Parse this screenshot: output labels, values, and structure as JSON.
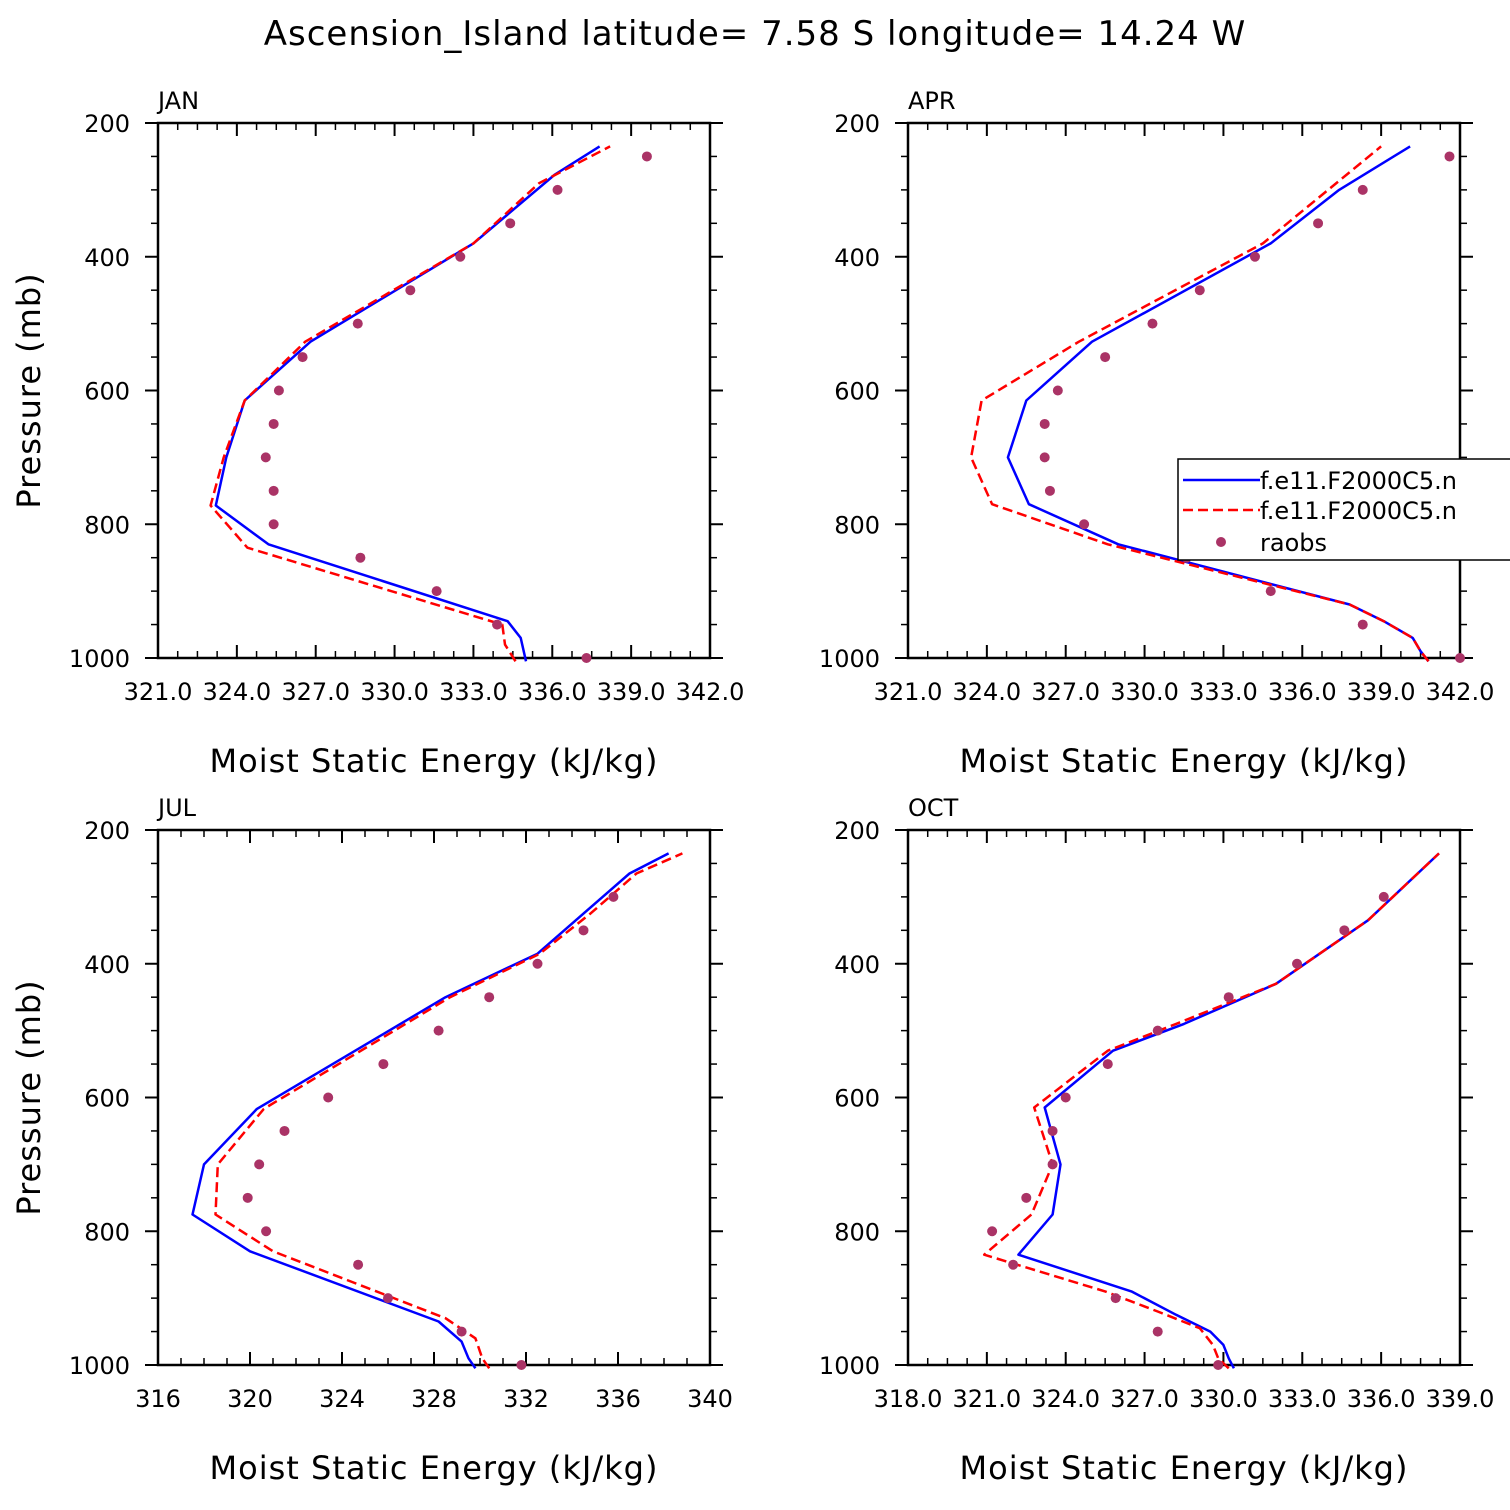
{
  "title": "Ascension_Island  latitude= 7.58 S longitude= 14.24 W",
  "colors": {
    "model_1": "#0000ff",
    "model_2": "#ff0000",
    "raobs": "#aa3366"
  },
  "legend": {
    "entries": [
      "f.e11.F2000C5.n",
      "f.e11.F2000C5.n",
      "raobs"
    ],
    "placement": "right of APR panel"
  },
  "chart_data": [
    {
      "type": "line",
      "panel": "JAN",
      "xlabel": "Moist Static Energy (kJ/kg)",
      "ylabel": "Pressure (mb)",
      "xlim": [
        321.0,
        342.0
      ],
      "ylim": [
        1000,
        200
      ],
      "y_reversed": true,
      "xticks": [
        321.0,
        324.0,
        327.0,
        330.0,
        333.0,
        336.0,
        339.0,
        342.0
      ],
      "xtick_labels": [
        "321.0",
        "324.0",
        "327.0",
        "330.0",
        "333.0",
        "336.0",
        "339.0",
        "342.0"
      ],
      "yticks": [
        200,
        400,
        600,
        800,
        1000
      ],
      "ytick_labels": [
        "200",
        "400",
        "600",
        "800",
        "1000"
      ],
      "series": [
        {
          "name": "f.e11.F2000C5.n",
          "style": "solid",
          "x": [
            335.0,
            334.8,
            334.3,
            325.2,
            323.2,
            323.6,
            324.3,
            326.8,
            333.0,
            336.1,
            337.8
          ],
          "y": [
            1005,
            970,
            945,
            830,
            772,
            700,
            615,
            527,
            380,
            277,
            235
          ]
        },
        {
          "name": "f.e11.F2000C5.n",
          "style": "dashed",
          "x": [
            334.6,
            334.2,
            334.1,
            324.4,
            323.0,
            323.5,
            324.3,
            326.6,
            333.0,
            335.5,
            338.2
          ],
          "y": [
            1005,
            980,
            950,
            835,
            772,
            700,
            615,
            527,
            380,
            290,
            235
          ]
        },
        {
          "name": "raobs",
          "style": "points",
          "x": [
            339.6,
            336.2,
            334.4,
            332.5,
            330.6,
            328.6,
            326.5,
            325.6,
            325.4,
            325.1,
            325.4,
            325.4,
            328.7,
            331.6,
            333.9,
            337.3
          ],
          "y": [
            250,
            300,
            350,
            400,
            450,
            500,
            550,
            600,
            650,
            700,
            750,
            800,
            850,
            900,
            950,
            1000
          ]
        }
      ]
    },
    {
      "type": "line",
      "panel": "APR",
      "xlabel": "Moist Static Energy (kJ/kg)",
      "ylabel": "",
      "xlim": [
        321.0,
        342.0
      ],
      "ylim": [
        1000,
        200
      ],
      "y_reversed": true,
      "xticks": [
        321.0,
        324.0,
        327.0,
        330.0,
        333.0,
        336.0,
        339.0,
        342.0
      ],
      "xtick_labels": [
        "321.0",
        "324.0",
        "327.0",
        "330.0",
        "333.0",
        "336.0",
        "339.0",
        "342.0"
      ],
      "yticks": [
        200,
        400,
        600,
        800,
        1000
      ],
      "ytick_labels": [
        "200",
        "400",
        "600",
        "800",
        "1000"
      ],
      "series": [
        {
          "name": "f.e11.F2000C5.n",
          "style": "solid",
          "x": [
            340.8,
            340.5,
            340.2,
            339.1,
            337.8,
            329.0,
            325.6,
            324.8,
            325.5,
            328.0,
            334.8,
            337.4,
            340.1
          ],
          "y": [
            1005,
            990,
            970,
            945,
            920,
            830,
            770,
            700,
            615,
            527,
            380,
            300,
            235
          ]
        },
        {
          "name": "f.e11.F2000C5.n",
          "style": "dashed",
          "x": [
            340.8,
            340.5,
            340.2,
            339.1,
            337.8,
            328.6,
            324.2,
            323.4,
            323.8,
            327.5,
            334.5,
            339.0
          ],
          "y": [
            1005,
            990,
            970,
            945,
            920,
            830,
            770,
            700,
            615,
            527,
            380,
            235
          ]
        },
        {
          "name": "raobs",
          "style": "points",
          "x": [
            341.6,
            338.3,
            336.6,
            334.2,
            332.1,
            330.3,
            328.5,
            326.7,
            326.2,
            326.2,
            326.4,
            327.7,
            331.6,
            334.8,
            338.3,
            342.0
          ],
          "y": [
            250,
            300,
            350,
            400,
            450,
            500,
            550,
            600,
            650,
            700,
            750,
            800,
            850,
            900,
            950,
            1000
          ]
        }
      ]
    },
    {
      "type": "line",
      "panel": "JUL",
      "xlabel": "Moist Static Energy (kJ/kg)",
      "ylabel": "Pressure (mb)",
      "xlim": [
        316,
        340
      ],
      "ylim": [
        1000,
        200
      ],
      "y_reversed": true,
      "xticks": [
        316,
        320,
        324,
        328,
        332,
        336,
        340
      ],
      "xtick_labels": [
        "316",
        "320",
        "324",
        "328",
        "332",
        "336",
        "340"
      ],
      "yticks": [
        200,
        400,
        600,
        800,
        1000
      ],
      "ytick_labels": [
        "200",
        "400",
        "600",
        "800",
        "1000"
      ],
      "series": [
        {
          "name": "f.e11.F2000C5.n",
          "style": "solid",
          "x": [
            329.8,
            329.5,
            329.2,
            328.2,
            320.0,
            317.5,
            318.0,
            320.3,
            328.5,
            332.5,
            334.5,
            336.5,
            338.2
          ],
          "y": [
            1005,
            990,
            965,
            935,
            830,
            775,
            700,
            617,
            450,
            385,
            325,
            265,
            235
          ]
        },
        {
          "name": "f.e11.F2000C5.n",
          "style": "dashed",
          "x": [
            330.4,
            330.1,
            329.8,
            328.5,
            321.0,
            318.5,
            318.6,
            320.6,
            328.7,
            332.6,
            334.8,
            336.8,
            338.8
          ],
          "y": [
            1005,
            990,
            960,
            930,
            830,
            775,
            700,
            617,
            450,
            385,
            325,
            265,
            235
          ]
        },
        {
          "name": "raobs",
          "style": "points",
          "x": [
            335.8,
            334.5,
            332.5,
            330.4,
            328.2,
            325.8,
            323.4,
            321.5,
            320.4,
            319.9,
            320.7,
            324.7,
            326.0,
            329.2,
            331.8
          ],
          "y": [
            300,
            350,
            400,
            450,
            500,
            550,
            600,
            650,
            700,
            750,
            800,
            850,
            900,
            950,
            1000
          ]
        }
      ]
    },
    {
      "type": "line",
      "panel": "OCT",
      "xlabel": "Moist Static Energy (kJ/kg)",
      "ylabel": "",
      "xlim": [
        318.0,
        339.0
      ],
      "ylim": [
        1000,
        200
      ],
      "y_reversed": true,
      "xticks": [
        318.0,
        321.0,
        324.0,
        327.0,
        330.0,
        333.0,
        336.0,
        339.0
      ],
      "xtick_labels": [
        "318.0",
        "321.0",
        "324.0",
        "327.0",
        "330.0",
        "333.0",
        "336.0",
        "339.0"
      ],
      "yticks": [
        200,
        400,
        600,
        800,
        1000
      ],
      "ytick_labels": [
        "200",
        "400",
        "600",
        "800",
        "1000"
      ],
      "series": [
        {
          "name": "f.e11.F2000C5.n",
          "style": "solid",
          "x": [
            330.4,
            330.2,
            330.0,
            329.5,
            328.2,
            326.5,
            322.2,
            323.5,
            323.8,
            323.2,
            325.8,
            328.5,
            332.0,
            335.5,
            338.2
          ],
          "y": [
            1005,
            990,
            970,
            950,
            925,
            890,
            835,
            775,
            700,
            615,
            530,
            490,
            430,
            335,
            235
          ]
        },
        {
          "name": "f.e11.F2000C5.n",
          "style": "dashed",
          "x": [
            330.2,
            329.8,
            329.6,
            329.1,
            327.5,
            325.5,
            320.9,
            322.7,
            323.5,
            322.8,
            325.6,
            328.2,
            332.0,
            335.5,
            338.2
          ],
          "y": [
            1005,
            990,
            970,
            945,
            920,
            890,
            835,
            775,
            700,
            615,
            530,
            490,
            430,
            335,
            235
          ]
        },
        {
          "name": "raobs",
          "style": "points",
          "x": [
            336.1,
            334.6,
            332.8,
            330.2,
            327.5,
            325.6,
            324.0,
            323.5,
            323.5,
            322.5,
            321.2,
            322.0,
            325.9,
            327.5,
            329.8
          ],
          "y": [
            300,
            350,
            400,
            450,
            500,
            550,
            600,
            650,
            700,
            750,
            800,
            850,
            900,
            950,
            1000
          ]
        }
      ]
    }
  ]
}
